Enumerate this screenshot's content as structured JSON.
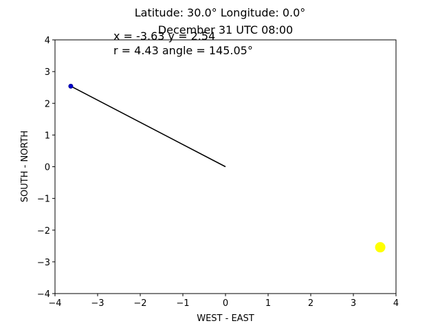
{
  "chart_data": {
    "type": "scatter",
    "title": "Latitude: 30.0° Longitude: 0.0°",
    "subtitle": "December 31 UTC 08:00",
    "xlabel": "WEST - EAST",
    "ylabel": "SOUTH - NORTH",
    "xlim": [
      -4,
      4
    ],
    "ylim": [
      -4,
      4
    ],
    "x_ticks": [
      -4,
      -3,
      -2,
      -1,
      0,
      1,
      2,
      3,
      4
    ],
    "y_ticks": [
      -4,
      -3,
      -2,
      -1,
      0,
      1,
      2,
      3,
      4
    ],
    "x_tick_labels": [
      "−4",
      "−3",
      "−2",
      "−1",
      "0",
      "1",
      "2",
      "3",
      "4"
    ],
    "y_tick_labels": [
      "−4",
      "−3",
      "−2",
      "−1",
      "0",
      "1",
      "2",
      "3",
      "4"
    ],
    "grid": false,
    "annotations": [
      "x = -3.63 y = 2.54",
      "r = 4.43 angle = 145.05°"
    ],
    "shadow_line": {
      "from": [
        0,
        0
      ],
      "to": [
        -3.63,
        2.54
      ],
      "color": "#000000"
    },
    "shadow_tip": {
      "x": -3.63,
      "y": 2.54,
      "color": "#0000cc"
    },
    "sun": {
      "x": 3.63,
      "y": -2.54,
      "color": "#ffff00"
    }
  }
}
